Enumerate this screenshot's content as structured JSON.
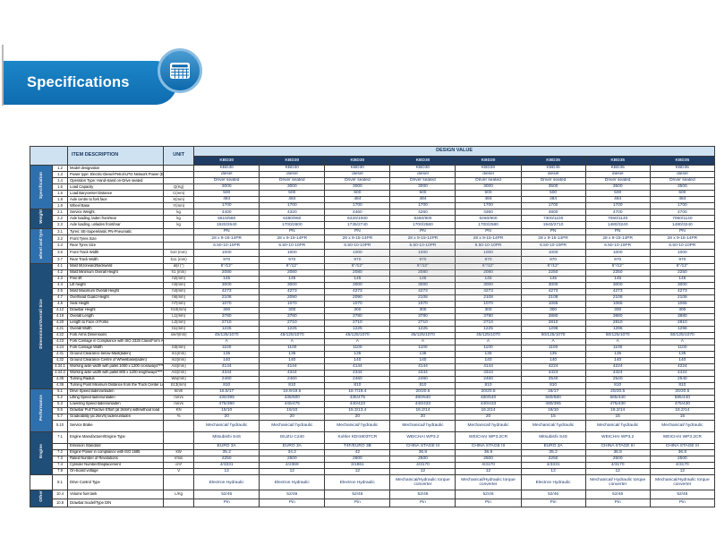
{
  "page": {
    "title": "Specifications"
  },
  "colors": {
    "banner": "#0f6cb0",
    "banner_light": "#1b86c8",
    "header_bg": "#cfe2f2",
    "model_bg": "#1f3c64",
    "section_bar": "#2e6fad",
    "section_bar_alt": "#1f4e79"
  },
  "icon": {
    "name": "spreadsheet-calculator-icon"
  },
  "table": {
    "item_header": "ITEM DESCRIPTION",
    "unit_header": "UNIT",
    "design_header": "DESIGN VALUE",
    "models": [
      "KBD30",
      "KBD30",
      "KBD30",
      "KBD30",
      "KBD30",
      "KBD35",
      "KBD35",
      "KBD35"
    ],
    "sections": [
      {
        "label": "Specification",
        "rows": [
          {
            "num": "1.2",
            "desc": "Model designation",
            "unit": "",
            "values": [
              "KBD30",
              "KBD30",
              "KBD30",
              "KBD30",
              "KBD30",
              "KBD35",
              "KBD35",
              "KBD35"
            ]
          },
          {
            "num": "1.3",
            "desc": "Power type: Electric-Diesel-Petrol-LPG-Network Power (Electric)",
            "unit": "",
            "values": [
              "diesel",
              "diesel",
              "diesel",
              "diesel",
              "diesel",
              "diesel",
              "diesel",
              "diesel"
            ]
          },
          {
            "num": "1.4",
            "desc": "Operation Type: Hand-stand on-Drive seated",
            "unit": "",
            "values": [
              "Driver seated",
              "Driver seated",
              "Driver seated",
              "Driver seated",
              "Driver seated",
              "Driver seated",
              "Driver seated",
              "Driver seated"
            ]
          },
          {
            "num": "1.5",
            "desc": "Load Capacity",
            "unit": "Q(Kg)",
            "values": [
              "3000",
              "3000",
              "3000",
              "3000",
              "3000",
              "3500",
              "3500",
              "3500"
            ]
          },
          {
            "num": "1.6",
            "desc": "Load Barycenter Distance",
            "unit": "C(mm)",
            "values": [
              "500",
              "500",
              "500",
              "500",
              "500",
              "500",
              "500",
              "500"
            ]
          },
          {
            "num": "1.8",
            "desc": "Axle centre to fork face",
            "unit": "X(mm)",
            "values": [
              "484",
              "484",
              "484",
              "484",
              "484",
              "484",
              "484",
              "484"
            ]
          },
          {
            "num": "1.9",
            "desc": "Wheel Base",
            "unit": "Y(mm)",
            "values": [
              "1700",
              "1700",
              "1700",
              "1700",
              "1700",
              "1700",
              "1700",
              "1700"
            ]
          }
        ]
      },
      {
        "label": "Weight",
        "rows": [
          {
            "num": "2.1",
            "desc": "Service Weight",
            "unit": "kg",
            "values": [
              "4400",
              "4320",
              "4460",
              "4260",
              "4360",
              "4800",
              "4700",
              "4700"
            ]
          },
          {
            "num": "2.2",
            "desc": "Axle loading, laden front/rear",
            "unit": "kg",
            "values": [
              "6615/580",
              "6480/960",
              "6420/1000",
              "6460/900",
              "6460/900",
              "7300/1100",
              "7060/1140",
              "7060/1140"
            ]
          },
          {
            "num": "2.3",
            "desc": "Axle loading, unladen front/rear",
            "unit": "kg",
            "values": [
              "1920/2640",
              "1700/2600",
              "1735/2740",
              "1700/2580",
              "1700/2580",
              "1940/2710",
              "1480/3240",
              "1480/3240"
            ]
          }
        ]
      },
      {
        "label": "wheel and tyre",
        "rows": [
          {
            "num": "3.1",
            "desc": "Tyres: SE-Superelastic PN-Pneumatic",
            "unit": "",
            "values": [
              "PN",
              "PN",
              "PN",
              "PN",
              "PN",
              "PN",
              "PN",
              "PN"
            ]
          },
          {
            "num": "3.2",
            "desc": "Front Tyres Size",
            "unit": "",
            "values": [
              "28 x 9-15-14PR",
              "28 x 9-15-14PR",
              "28 x 9-15-14PR",
              "28 x 9-15-14PR",
              "28 x 9-15-14PR",
              "28 x 9-15-14PR",
              "28 x 9-15-14PR",
              "28 x 9-15-14PR"
            ]
          },
          {
            "num": "3.3",
            "desc": "Rear Tyres Size",
            "unit": "",
            "values": [
              "6.50-10-10PR",
              "6.50-10-10PR",
              "6.50-10-10PR",
              "6.50-10-10PR",
              "6.50-10-10PR",
              "6.50-10-10PR",
              "6.50-10-10PR",
              "6.50-10-10PR"
            ]
          },
          {
            "num": "3.6",
            "desc": "Front Track Width",
            "unit": "b10 (mm)",
            "values": [
              "1000",
              "1000",
              "1000",
              "1000",
              "1000",
              "1000",
              "1000",
              "1000"
            ]
          },
          {
            "num": "3.7",
            "desc": "Rear Track Width",
            "unit": "b11 (mm)",
            "values": [
              "970",
              "970",
              "970",
              "970",
              "970",
              "970",
              "970",
              "970"
            ]
          }
        ]
      },
      {
        "label": "Dimensions/Overall Size",
        "rows": [
          {
            "num": "4.1",
            "desc": "Mast tilt,forward/backward",
            "unit": "α/β (°)",
            "values": [
              "6°/12°",
              "6°/12°",
              "6°/12°",
              "6°/12°",
              "6°/12°",
              "6°/12°",
              "6°/12°",
              "6°/12°"
            ]
          },
          {
            "num": "4.2",
            "desc": "Mast Minimum Overall Height",
            "unit": "h1 (mm)",
            "values": [
              "2080",
              "2080",
              "2080",
              "2080",
              "2080",
              "2250",
              "2250",
              "2250"
            ]
          },
          {
            "num": "4.3",
            "desc": "Free lift",
            "unit": "h2(mm)",
            "values": [
              "145",
              "145",
              "145",
              "145",
              "145",
              "145",
              "145",
              "145"
            ]
          },
          {
            "num": "4.4",
            "desc": "Lift height",
            "unit": "h3(mm)",
            "values": [
              "3000",
              "3000",
              "3000",
              "3000",
              "3000",
              "3000",
              "3000",
              "3000"
            ]
          },
          {
            "num": "4.5",
            "desc": "Mast Maximum Overall Height",
            "unit": "h4(mm)",
            "values": [
              "4273",
              "4273",
              "4273",
              "4273",
              "4273",
              "4273",
              "4273",
              "4273"
            ]
          },
          {
            "num": "4.7",
            "desc": "Overhead Guard Height",
            "unit": "h6(mm)",
            "values": [
              "2108",
              "2090",
              "2090",
              "2108",
              "2108",
              "2108",
              "2108",
              "2108"
            ]
          },
          {
            "num": "4.8",
            "desc": "Seat Height",
            "unit": "h7(mm)",
            "values": [
              "1070",
              "1070",
              "1070",
              "1070",
              "1070",
              "1065",
              "1065",
              "1065"
            ]
          },
          {
            "num": "4.12",
            "desc": "Drawbar Height",
            "unit": "h10(mm)",
            "values": [
              "300",
              "300",
              "300",
              "300",
              "300",
              "300",
              "300",
              "300"
            ]
          },
          {
            "num": "4.19",
            "desc": "Overall Length",
            "unit": "L1(mm)",
            "values": [
              "3780",
              "3780",
              "3780",
              "3780",
              "3780",
              "3880",
              "3880",
              "3880"
            ]
          },
          {
            "num": "4.20",
            "desc": "Length to Face of Forks",
            "unit": "L2(mm)",
            "values": [
              "2710",
              "2710",
              "2710",
              "2710",
              "2710",
              "2810",
              "2810",
              "2810"
            ]
          },
          {
            "num": "4.21",
            "desc": "Overall Width",
            "unit": "b1(mm)",
            "values": [
              "1225",
              "1225",
              "1225",
              "1225",
              "1225",
              "1296",
              "1296",
              "1296"
            ]
          },
          {
            "num": "4.22",
            "desc": "Fork Arms Dimensions",
            "unit": "s/e/l(mm)",
            "values": [
              "45/125/1070",
              "45/125/1070",
              "45/125/1070",
              "45/125/1070",
              "45/125/1070",
              "50/125/1070",
              "50/125/1070",
              "50/125/1070"
            ]
          },
          {
            "num": "4.23",
            "desc": "Fork Carriage in Compliance with ISO 2328 Class/Form A,B",
            "unit": "",
            "values": [
              "A",
              "A",
              "A",
              "A",
              "A",
              "A",
              "A",
              "A"
            ]
          },
          {
            "num": "4.24",
            "desc": "Fork Carriage Width",
            "unit": "b3(mm)",
            "values": [
              "1100",
              "1100",
              "1100",
              "1100",
              "1100",
              "1100",
              "1100",
              "1100"
            ]
          },
          {
            "num": "4.31",
            "desc": "Ground Clearance below Mast(laden)",
            "unit": "m1(mm)",
            "values": [
              "135",
              "135",
              "135",
              "135",
              "135",
              "135",
              "135",
              "135"
            ]
          },
          {
            "num": "4.32",
            "desc": "Ground Clearance Centre of Wheelbase(laden)",
            "unit": "m2(mm)",
            "values": [
              "140",
              "140",
              "140",
              "140",
              "140",
              "140",
              "140",
              "140"
            ]
          },
          {
            "num": "4.34.1",
            "desc": "Working aisle width with pallet 1000 x 1200 crossways****",
            "unit": "Ast(mm)",
            "values": [
              "4144",
              "4144",
              "4144",
              "4144",
              "4144",
              "4224",
              "4224",
              "4224"
            ]
          },
          {
            "num": "4.34.2",
            "desc": "Working aisle width with pallet 800 x 1200 lengthways****",
            "unit": "Ast(mm)",
            "values": [
              "4344",
              "4344",
              "4344",
              "4344",
              "4344",
              "4424",
              "4424",
              "4424"
            ]
          },
          {
            "num": "4.35",
            "desc": "Turning Radius",
            "unit": "Wa(mm)",
            "values": [
              "2460",
              "2460",
              "2460",
              "2460",
              "2460",
              "2540",
              "2540",
              "2540"
            ]
          },
          {
            "num": "4.36",
            "desc": "Turning Point Minimum Distance from the Truck Center Line",
            "unit": "b13(mm)",
            "values": [
              "810",
              "810",
              "810",
              "810",
              "810",
              "810",
              "810",
              "810"
            ]
          }
        ]
      },
      {
        "label": "Performance",
        "rows": [
          {
            "num": "5.1",
            "desc": "Drive Speed laden/unladen",
            "unit": "km/h",
            "values": [
              "16.5/17",
              "18.9/19.5",
              "18.7/19.4",
              "20/20.5",
              "20/20.5",
              "16/17",
              "20/20.5",
              "20/20.5"
            ]
          },
          {
            "num": "5.2",
            "desc": "Lifting Speed laden/unladen",
            "unit": "mm/s",
            "values": [
              "430/395",
              "435/500",
              "435/475",
              "480/540",
              "480/540",
              "560/580",
              "585/440",
              "585/440"
            ]
          },
          {
            "num": "5.3",
            "desc": "Lowering Speed laden/unladen",
            "unit": "mm/s",
            "values": [
              "475/390",
              "445/475",
              "440/423",
              "440/433",
              "440/433",
              "490/395",
              "475/430",
              "475/430"
            ]
          },
          {
            "num": "5.5",
            "desc": "Drawbar Pull Tractive Effort (at 2km/h) with/without load",
            "unit": "KN",
            "values": [
              "15/10",
              "15/10",
              "15.3/13.4",
              "16.2/14",
              "16.2/14",
              "16/10",
              "16.2/14",
              "16.2/14"
            ]
          },
          {
            "num": "5.7",
            "desc": "Gradeability (at 2km/h) laden/unladen",
            "unit": "%",
            "values": [
              "20",
              "20",
              "20",
              "20",
              "20",
              "15",
              "15",
              "15"
            ]
          },
          {
            "num": "5.10",
            "desc": "Service Brake",
            "unit": "",
            "tall": true,
            "values": [
              "Mechanical/ hydraulic",
              "Mechanical/ hydraulic",
              "Mechanical/ hydraulic",
              "Mechanical/ hydraulic",
              "Mechanical/ hydraulic",
              "Mechanical/ hydraulic",
              "Mechanical/ hydraulic",
              "Mechanical/ hydraulic"
            ]
          }
        ]
      },
      {
        "label": "Engine",
        "rows": [
          {
            "num": "7.1",
            "desc": "Engine Manufacturer/Engine Type",
            "unit": "",
            "tall": true,
            "values": [
              "Mitsubishi S4S",
              "ISUZU C240",
              "Kohler KDI1903TCR",
              "WEICHAI WP3.2",
              "WEICHAI WP3.2CR",
              "Mitsubishi S4S",
              "WEICHAI WP3.2",
              "WEICHAI WP3.2CR"
            ]
          },
          {
            "num": "",
            "desc": "Emission Standard",
            "unit": "",
            "values": [
              "EURO 3A",
              "EURO 3A",
              "T4F/EURO 3B",
              "CHINA STAGE III",
              "CHINA STAGE III",
              "EURO 3A",
              "CHINA STAGE III",
              "CHINA STAGE III"
            ]
          },
          {
            "num": "7.2",
            "desc": "Engine Power in compliance with ISO 1585",
            "unit": "kW",
            "values": [
              "35.2",
              "34.2",
              "42",
              "36.8",
              "36.8",
              "35.2",
              "36.8",
              "36.8"
            ]
          },
          {
            "num": "7.3",
            "desc": "Rated Number of Revolutions",
            "unit": "r/min",
            "values": [
              "2250",
              "2500",
              "2600",
              "2500",
              "2500",
              "2250",
              "2500",
              "2500"
            ]
          },
          {
            "num": "7.4",
            "desc": "Cylinder Number/Displacement",
            "unit": "cm³",
            "values": [
              "4/3331",
              "4/2369",
              "3/1861",
              "4/3170",
              "4/3170",
              "4/3331",
              "4/3170",
              "4/3170"
            ]
          },
          {
            "num": "7.9",
            "desc": "On-board voltage",
            "unit": "V",
            "values": [
              "12",
              "12",
              "12",
              "12",
              "12",
              "12",
              "12",
              "12"
            ]
          }
        ]
      },
      {
        "label": "",
        "rows": [
          {
            "num": "8.1",
            "desc": "Drive Control Type",
            "unit": "",
            "tall": true,
            "values": [
              "Electron Hydraulic",
              "Electron Hydraulic",
              "Electron Hydraulic",
              "Mechanical/Hydraulic torque converter",
              "Mechanical/Hydraulic torque converter",
              "Electron Hydraulic",
              "Mechanical/ Hydraulic torque converter",
              "Mechanical/Hydraulic torque converter"
            ]
          }
        ]
      },
      {
        "label": "Other",
        "rows": [
          {
            "num": "10.4",
            "desc": "Volume fuel tank",
            "unit": "L/Kg",
            "values": [
              "52/46",
              "52/46",
              "52/46",
              "52/46",
              "52/46",
              "52/46",
              "52/46",
              "52/46"
            ]
          },
          {
            "num": "10.8",
            "desc": "Drawbar:model/Type DIN",
            "unit": "",
            "values": [
              "Pin",
              "Pin",
              "Pin",
              "Pin",
              "Pin",
              "Pin",
              "Pin",
              "Pin"
            ]
          }
        ]
      }
    ]
  }
}
